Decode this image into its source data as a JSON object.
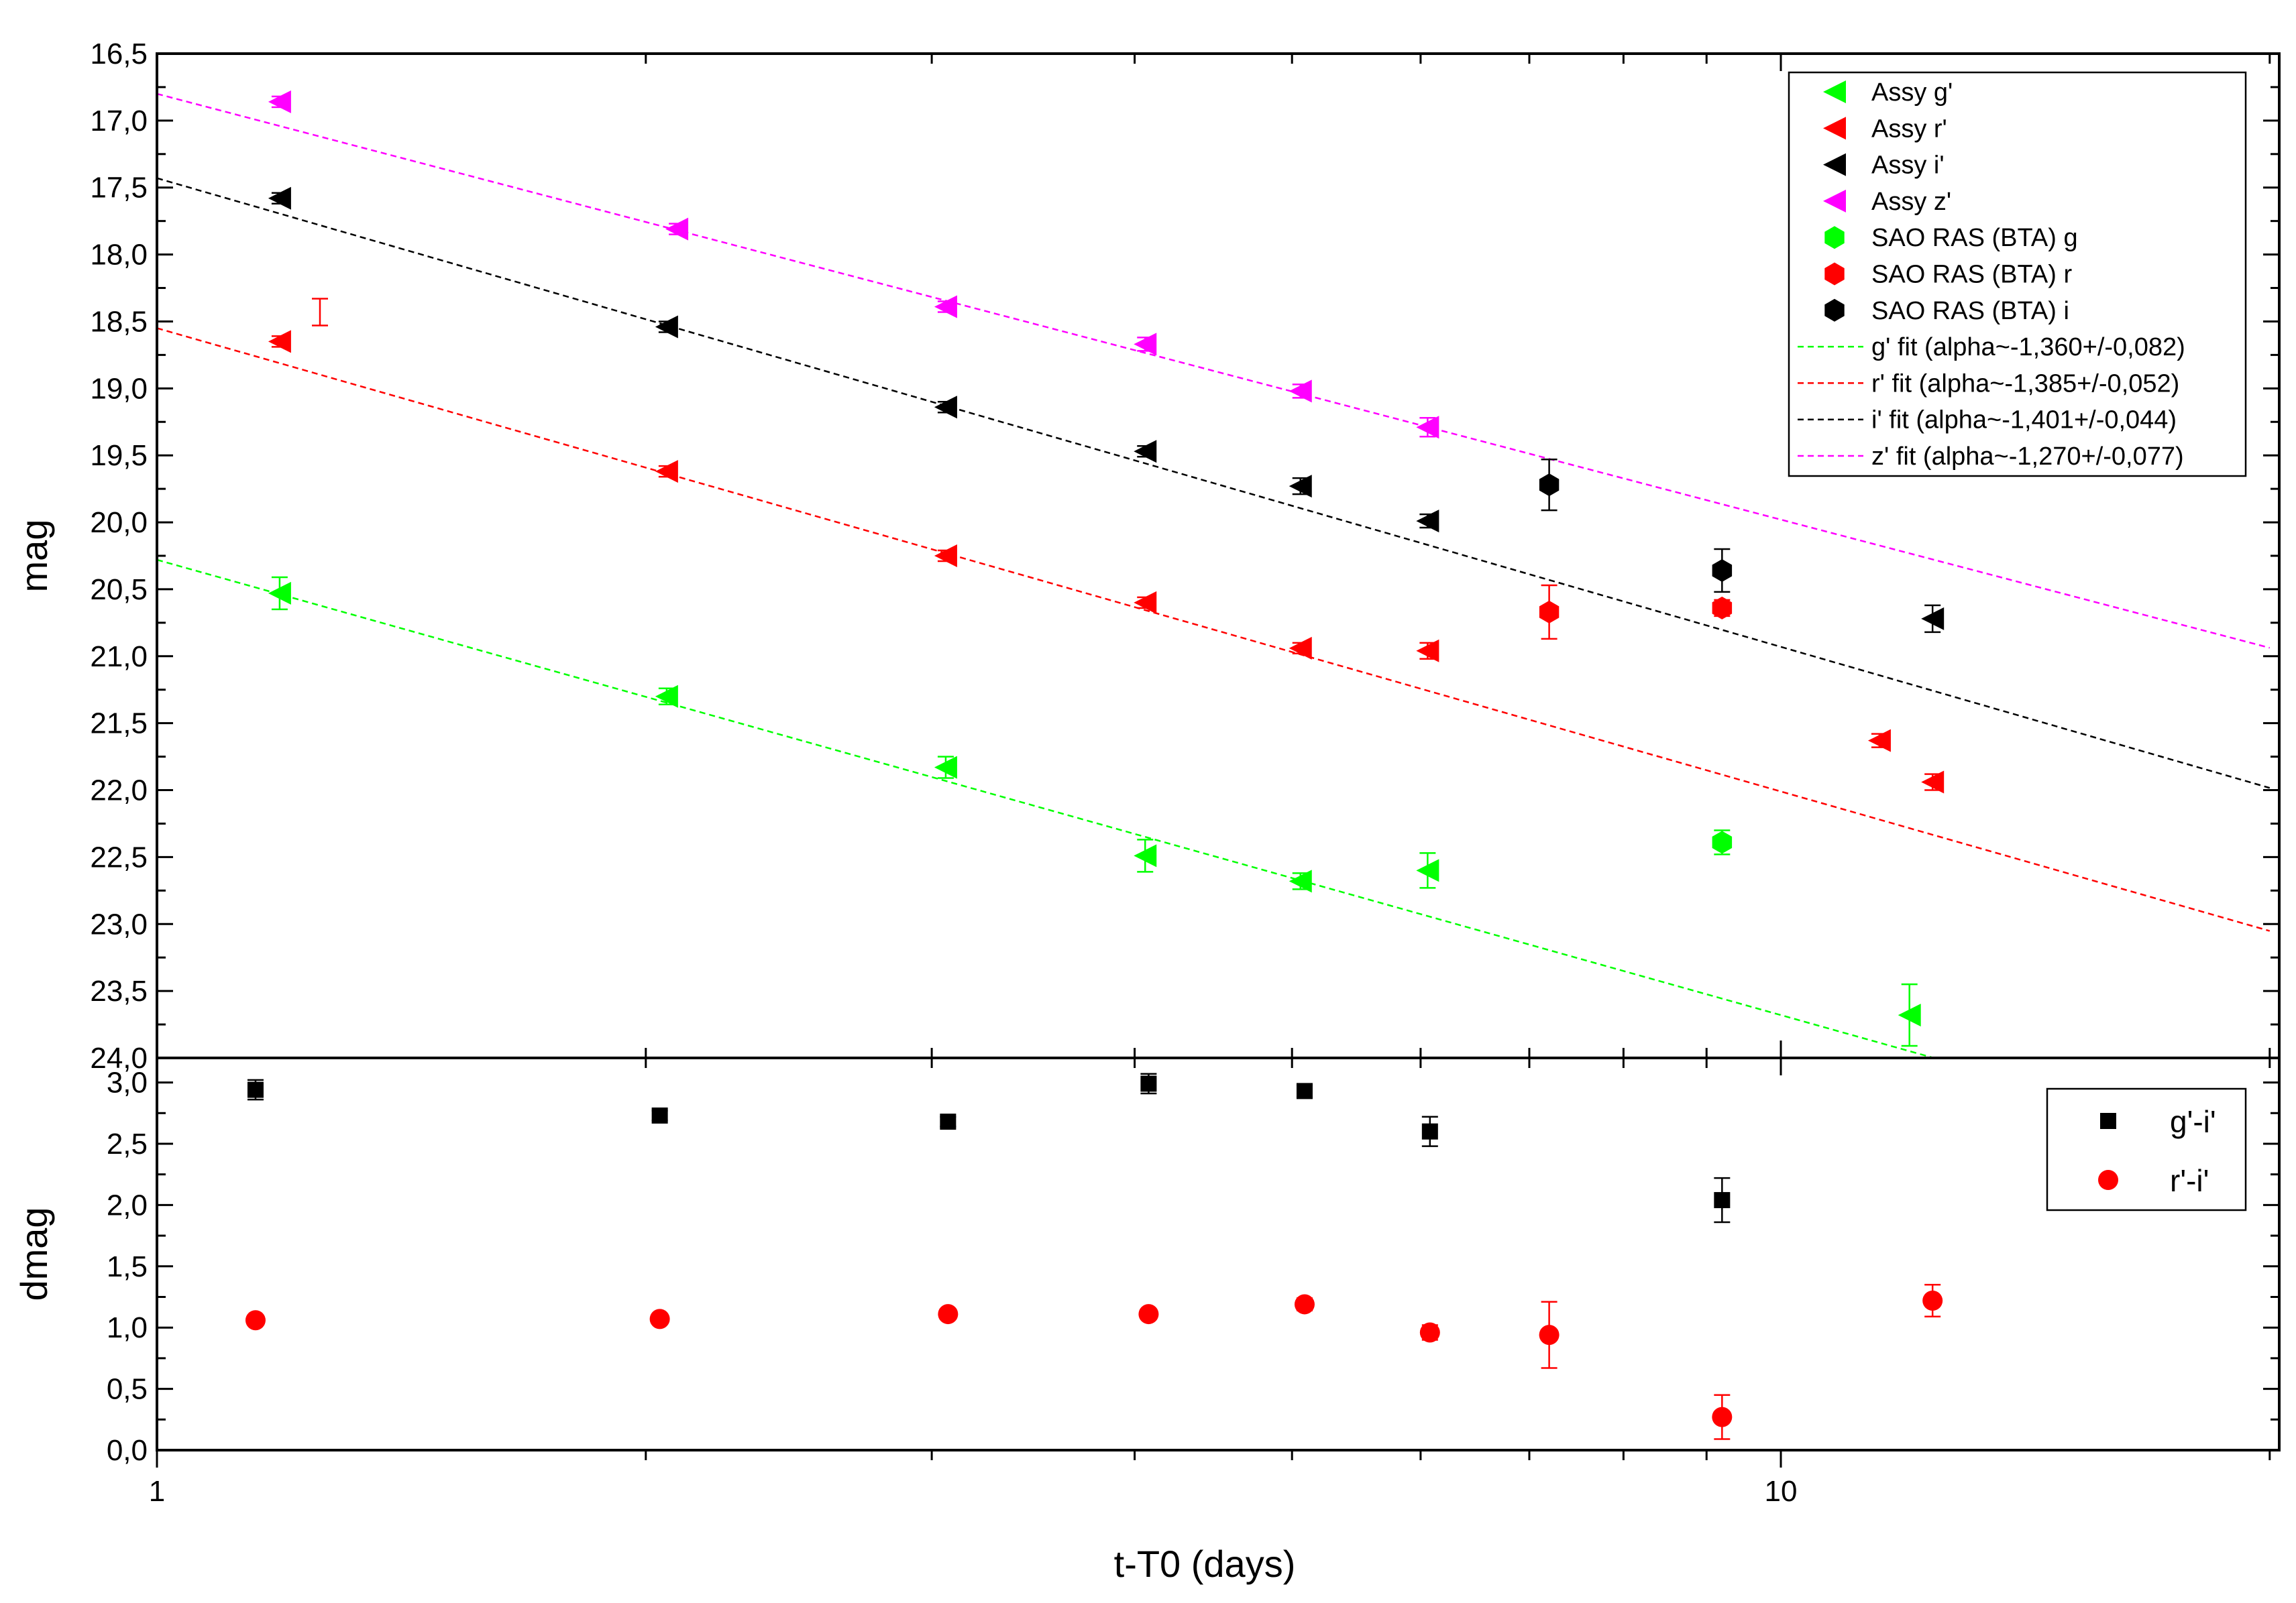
{
  "chart_data": [
    {
      "type": "scatter",
      "panel": "top",
      "xlabel": "",
      "ylabel": "mag",
      "xscale": "log",
      "xlim": [
        1,
        20
      ],
      "ylim": [
        24.0,
        16.5
      ],
      "y_inverted": true,
      "y_ticks": [
        "16,5",
        "17,0",
        "17,5",
        "18,0",
        "18,5",
        "19,0",
        "19,5",
        "20,0",
        "20,5",
        "21,0",
        "21,5",
        "22,0",
        "22,5",
        "23,0",
        "23,5",
        "24,0"
      ],
      "legend_position": "top-right",
      "series": [
        {
          "name": "Assy g'",
          "marker": "triangle-left",
          "color": "#00ff00",
          "points": [
            [
              1.19,
              20.53,
              0.12
            ],
            [
              2.06,
              21.3,
              0.06
            ],
            [
              3.06,
              21.83,
              0.08
            ],
            [
              4.06,
              22.49,
              0.12
            ],
            [
              5.06,
              22.68,
              0.06
            ],
            [
              6.06,
              22.6,
              0.13
            ],
            [
              12.0,
              23.68,
              0.23
            ]
          ]
        },
        {
          "name": "Assy r'",
          "marker": "triangle-left",
          "color": "#ff0000",
          "points": [
            [
              1.19,
              18.65,
              0.04
            ],
            [
              2.06,
              19.62,
              0.04
            ],
            [
              3.06,
              20.25,
              0.04
            ],
            [
              4.06,
              20.6,
              0.04
            ],
            [
              5.06,
              20.94,
              0.04
            ],
            [
              6.06,
              20.96,
              0.06
            ],
            [
              11.5,
              21.63,
              0.05
            ],
            [
              12.4,
              21.94,
              0.06
            ]
          ]
        },
        {
          "name": "Assy i'",
          "marker": "triangle-left",
          "color": "#000000",
          "points": [
            [
              1.19,
              17.58,
              0.04
            ],
            [
              2.06,
              18.54,
              0.04
            ],
            [
              3.06,
              19.14,
              0.04
            ],
            [
              4.06,
              19.47,
              0.04
            ],
            [
              5.06,
              19.73,
              0.06
            ],
            [
              6.06,
              19.99,
              0.05
            ],
            [
              12.4,
              20.72,
              0.1
            ]
          ]
        },
        {
          "name": "Assy z'",
          "marker": "triangle-left",
          "color": "#ff00ff",
          "points": [
            [
              1.19,
              16.86,
              0.04
            ],
            [
              2.09,
              17.81,
              0.04
            ],
            [
              3.06,
              18.39,
              0.04
            ],
            [
              4.06,
              18.67,
              0.05
            ],
            [
              5.06,
              19.02,
              0.05
            ],
            [
              6.06,
              19.29,
              0.07
            ]
          ]
        },
        {
          "name": "SAO RAS (BTA) g",
          "marker": "hexagon",
          "color": "#00ff00",
          "points": [
            [
              9.2,
              22.39,
              0.09
            ]
          ]
        },
        {
          "name": "SAO RAS (BTA) r",
          "marker": "hexagon",
          "color": "#ff0000",
          "points": [
            [
              7.2,
              20.67,
              0.2
            ],
            [
              9.2,
              20.64,
              0.06
            ]
          ]
        },
        {
          "name": "SAO RAS (BTA) i",
          "marker": "hexagon",
          "color": "#000000",
          "points": [
            [
              7.2,
              19.72,
              0.19
            ],
            [
              9.2,
              20.36,
              0.16
            ]
          ]
        }
      ],
      "fits": [
        {
          "name": "g' fit (alpha~-1,360+/-0,082)",
          "color": "#00ff00",
          "slope_mag_per_dex": 3.4,
          "mag_at_1day": 20.28
        },
        {
          "name": "r' fit (alpha~-1,385+/-0,052)",
          "color": "#ff0000",
          "slope_mag_per_dex": 3.46,
          "mag_at_1day": 18.55
        },
        {
          "name": "i' fit (alpha~-1,401+/-0,044)",
          "color": "#000000",
          "slope_mag_per_dex": 3.5,
          "mag_at_1day": 17.43
        },
        {
          "name": "z' fit (alpha~-1,270+/-0,077)",
          "color": "#ff00ff",
          "slope_mag_per_dex": 3.18,
          "mag_at_1day": 16.8
        }
      ],
      "extra_marks": [
        {
          "kind": "error-bar",
          "x": 1.26,
          "y": 18.43,
          "err": 0.1,
          "color": "#ff0000"
        }
      ]
    },
    {
      "type": "scatter",
      "panel": "bottom",
      "xlabel": "t-T0 (days)",
      "ylabel": "dmag",
      "xscale": "log",
      "xlim": [
        1,
        20
      ],
      "ylim": [
        0.0,
        3.2
      ],
      "x_ticks": [
        {
          "value": 1,
          "label": "1"
        },
        {
          "value": 10,
          "label": "10"
        }
      ],
      "y_ticks": [
        "0,0",
        "0,5",
        "1,0",
        "1,5",
        "2,0",
        "2,5",
        "3,0"
      ],
      "legend_position": "top-right",
      "series": [
        {
          "name": "g'-i'",
          "marker": "square",
          "color": "#000000",
          "points": [
            [
              1.15,
              2.94,
              0.08
            ],
            [
              2.04,
              2.73,
              0.04
            ],
            [
              3.07,
              2.68,
              0.04
            ],
            [
              4.08,
              2.99,
              0.08
            ],
            [
              5.09,
              2.93,
              0.05
            ],
            [
              6.08,
              2.6,
              0.12
            ],
            [
              9.2,
              2.04,
              0.18
            ]
          ]
        },
        {
          "name": "r'-i'",
          "marker": "circle",
          "color": "#ff0000",
          "points": [
            [
              1.15,
              1.06,
              0.03
            ],
            [
              2.04,
              1.07,
              0.03
            ],
            [
              3.07,
              1.11,
              0.03
            ],
            [
              4.08,
              1.11,
              0.03
            ],
            [
              5.09,
              1.19,
              0.05
            ],
            [
              6.08,
              0.96,
              0.06
            ],
            [
              7.2,
              0.94,
              0.27
            ],
            [
              9.2,
              0.27,
              0.18
            ],
            [
              12.4,
              1.22,
              0.13
            ]
          ]
        }
      ]
    }
  ]
}
